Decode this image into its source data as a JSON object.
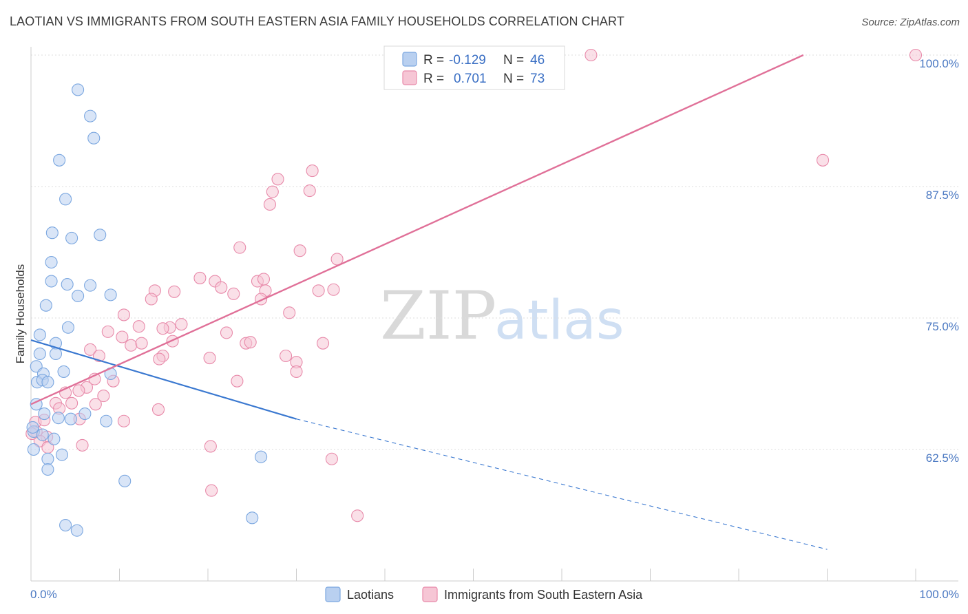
{
  "chart_data": {
    "type": "scatter",
    "title": "LAOTIAN VS IMMIGRANTS FROM SOUTH EASTERN ASIA FAMILY HOUSEHOLDS CORRELATION CHART",
    "source": "Source: ZipAtlas.com",
    "xlabel": "",
    "ylabel": "Family Households",
    "xlim": [
      0,
      100
    ],
    "ylim": [
      52.5,
      100.5
    ],
    "y_ticks": [
      {
        "value": 62.5,
        "label": "62.5%"
      },
      {
        "value": 75.0,
        "label": "75.0%"
      },
      {
        "value": 87.5,
        "label": "87.5%"
      },
      {
        "value": 100.0,
        "label": "100.0%"
      }
    ],
    "x_ticks_labels": {
      "left": "0.0%",
      "right": "100.0%"
    },
    "x_minor_ticks": [
      0,
      10,
      20,
      30,
      40,
      50,
      60,
      70,
      80,
      90,
      100
    ],
    "legend": {
      "entries": [
        {
          "r_label": "R =",
          "r": "-0.129",
          "n_label": "N =",
          "n": "46"
        },
        {
          "r_label": "R =",
          "r": "0.701",
          "n_label": "N =",
          "n": "73"
        }
      ]
    },
    "watermark": {
      "zip": "ZIP",
      "atlas": "atlas"
    },
    "series": [
      {
        "name": "Laotians",
        "color": "#7ba7e0",
        "fill": "#b9d0f0",
        "line_color": "#3a78d0",
        "trend": {
          "x0": 0,
          "y0": 72.9,
          "x1": 30,
          "y1": 65.4,
          "dash_to_x": 90,
          "dash_to_y": 53.0
        },
        "points": [
          [
            5.3,
            96.7
          ],
          [
            6.7,
            94.2
          ],
          [
            7.1,
            92.1
          ],
          [
            3.2,
            90.0
          ],
          [
            3.9,
            86.3
          ],
          [
            2.4,
            83.1
          ],
          [
            7.8,
            82.9
          ],
          [
            4.6,
            82.6
          ],
          [
            2.3,
            80.3
          ],
          [
            2.3,
            78.5
          ],
          [
            4.1,
            78.2
          ],
          [
            6.7,
            78.1
          ],
          [
            5.3,
            77.1
          ],
          [
            9.0,
            77.2
          ],
          [
            1.7,
            76.2
          ],
          [
            4.2,
            74.1
          ],
          [
            1.0,
            73.4
          ],
          [
            2.8,
            72.6
          ],
          [
            2.8,
            71.6
          ],
          [
            1.0,
            71.6
          ],
          [
            0.6,
            70.4
          ],
          [
            3.7,
            69.9
          ],
          [
            1.4,
            69.7
          ],
          [
            9.0,
            69.7
          ],
          [
            0.7,
            68.9
          ],
          [
            1.3,
            69.1
          ],
          [
            1.9,
            68.9
          ],
          [
            0.6,
            66.8
          ],
          [
            1.5,
            65.9
          ],
          [
            4.5,
            65.4
          ],
          [
            3.1,
            65.5
          ],
          [
            8.5,
            65.2
          ],
          [
            6.1,
            65.9
          ],
          [
            0.3,
            64.2
          ],
          [
            1.3,
            63.9
          ],
          [
            2.6,
            63.5
          ],
          [
            0.3,
            62.5
          ],
          [
            3.5,
            62.0
          ],
          [
            1.9,
            61.6
          ],
          [
            1.9,
            60.6
          ],
          [
            26.0,
            61.8
          ],
          [
            10.6,
            59.5
          ],
          [
            25.0,
            56.0
          ],
          [
            3.9,
            55.3
          ],
          [
            5.2,
            54.8
          ],
          [
            0.2,
            64.6
          ]
        ]
      },
      {
        "name": "Immigrants from South Eastern Asia",
        "color": "#e88aaa",
        "fill": "#f6c6d5",
        "line_color": "#e07098",
        "trend": {
          "x0": 0,
          "y0": 66.8,
          "x1": 87.3,
          "y1": 100.0
        },
        "points": [
          [
            63.3,
            100.0
          ],
          [
            100.0,
            100.0
          ],
          [
            89.5,
            90.0
          ],
          [
            31.8,
            89.0
          ],
          [
            27.9,
            88.2
          ],
          [
            27.3,
            87.0
          ],
          [
            31.5,
            87.1
          ],
          [
            27.0,
            85.8
          ],
          [
            23.6,
            81.7
          ],
          [
            30.4,
            81.4
          ],
          [
            34.6,
            80.6
          ],
          [
            19.1,
            78.8
          ],
          [
            20.8,
            78.5
          ],
          [
            25.6,
            78.5
          ],
          [
            26.3,
            78.7
          ],
          [
            21.5,
            77.9
          ],
          [
            14.0,
            77.6
          ],
          [
            16.2,
            77.5
          ],
          [
            32.5,
            77.6
          ],
          [
            34.2,
            77.7
          ],
          [
            26.5,
            77.6
          ],
          [
            22.9,
            77.3
          ],
          [
            13.6,
            76.8
          ],
          [
            26.0,
            76.8
          ],
          [
            10.5,
            75.3
          ],
          [
            29.2,
            75.5
          ],
          [
            15.7,
            74.1
          ],
          [
            14.9,
            74.0
          ],
          [
            17.0,
            74.4
          ],
          [
            12.2,
            74.2
          ],
          [
            8.7,
            73.7
          ],
          [
            22.1,
            73.6
          ],
          [
            10.3,
            73.2
          ],
          [
            16.0,
            72.8
          ],
          [
            24.3,
            72.6
          ],
          [
            24.8,
            72.7
          ],
          [
            11.3,
            72.4
          ],
          [
            12.5,
            72.6
          ],
          [
            33.0,
            72.6
          ],
          [
            6.7,
            72.0
          ],
          [
            7.7,
            71.4
          ],
          [
            20.2,
            71.2
          ],
          [
            28.8,
            71.4
          ],
          [
            14.9,
            71.4
          ],
          [
            14.5,
            71.1
          ],
          [
            30.0,
            70.8
          ],
          [
            30.0,
            69.9
          ],
          [
            23.3,
            69.0
          ],
          [
            7.2,
            69.2
          ],
          [
            9.3,
            69.0
          ],
          [
            6.3,
            68.4
          ],
          [
            5.4,
            68.1
          ],
          [
            3.9,
            67.9
          ],
          [
            8.2,
            67.6
          ],
          [
            4.6,
            66.9
          ],
          [
            7.3,
            66.8
          ],
          [
            2.8,
            66.9
          ],
          [
            3.2,
            66.4
          ],
          [
            10.5,
            65.2
          ],
          [
            14.4,
            66.3
          ],
          [
            5.5,
            65.4
          ],
          [
            0.5,
            65.1
          ],
          [
            1.5,
            65.3
          ],
          [
            0.6,
            64.2
          ],
          [
            1.8,
            63.7
          ],
          [
            1.0,
            63.3
          ],
          [
            5.8,
            62.9
          ],
          [
            1.9,
            62.7
          ],
          [
            20.3,
            62.8
          ],
          [
            34.0,
            61.6
          ],
          [
            20.4,
            58.6
          ],
          [
            36.9,
            56.2
          ],
          [
            0.1,
            64.0
          ]
        ]
      }
    ]
  }
}
